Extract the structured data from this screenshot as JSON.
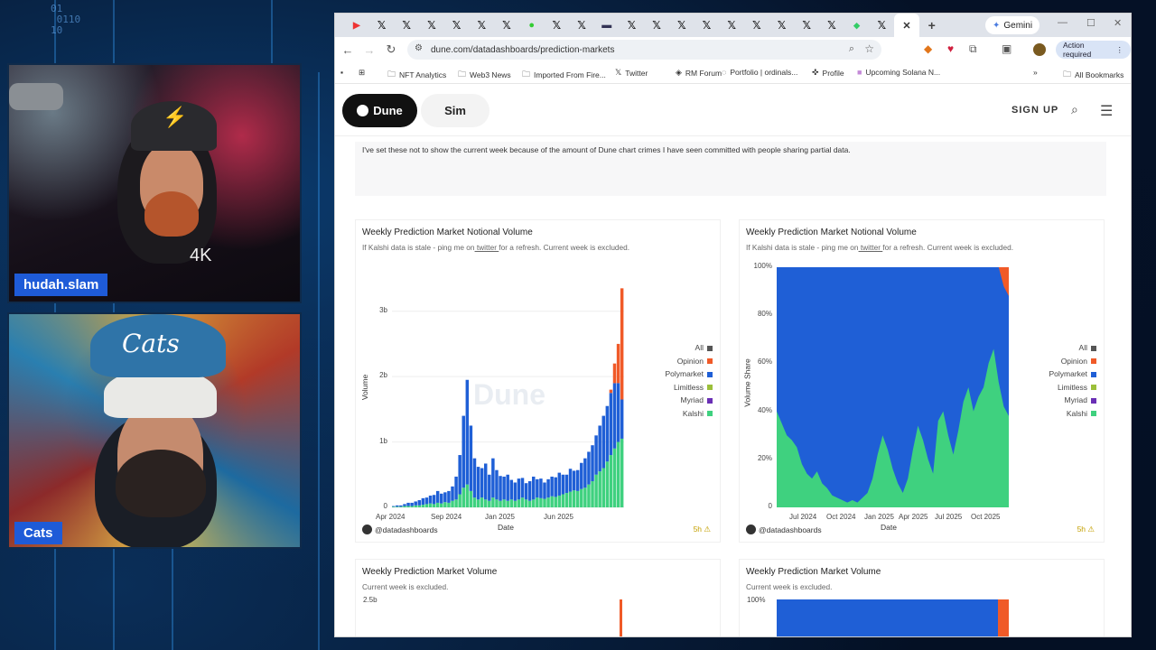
{
  "overlay": {
    "host_label": "hudah.slam",
    "guest_label": "Cats",
    "cap_text": "Cats",
    "digits_text": "01\n 0110\n10"
  },
  "browser": {
    "gemini_tab": "Gemini",
    "url": "dune.com/datadashboards/prediction-markets",
    "action_required": "Action required",
    "bookmarks": [
      "NFT Analytics",
      "Web3 News",
      "Imported From Fire...",
      "Twitter",
      "RM Forum",
      "Portfolio | ordinals...",
      "Profile",
      "Upcoming Solana N...",
      "All Bookmarks"
    ]
  },
  "dune": {
    "logo": "Dune",
    "sim": "Sim",
    "signup": "SIGN UP",
    "note": "I've set these not to show the current week because of the amount of Dune chart crimes I have seen committed with people sharing partial data.",
    "watermark": "Dune"
  },
  "chart_data": [
    {
      "type": "bar",
      "title": "Weekly Prediction Market Notional Volume",
      "subtitle_pre": "If Kalshi data is stale - ping me on",
      "subtitle_link": "twitter",
      "subtitle_post": "for a refresh. Current week is excluded.",
      "xlabel": "Date",
      "ylabel": "Volume",
      "yticks": [
        "0",
        "1b",
        "2b",
        "3b"
      ],
      "xticks": [
        "Apr 2024",
        "Sep 2024",
        "Jan 2025",
        "Jun 2025"
      ],
      "ylim": [
        0,
        3.7
      ],
      "stacked": true,
      "legend": [
        "All",
        "Opinion",
        "Polymarket",
        "Limitless",
        "Myriad",
        "Kalshi"
      ],
      "colors": {
        "All": "#555555",
        "Opinion": "#f05a28",
        "Polymarket": "#1f5fd6",
        "Limitless": "#9bbf3a",
        "Myriad": "#6a2fb5",
        "Kalshi": "#3fd17f"
      },
      "series": [
        {
          "name": "Kalshi",
          "values": [
            0.01,
            0.01,
            0.01,
            0.02,
            0.02,
            0.02,
            0.03,
            0.03,
            0.04,
            0.05,
            0.06,
            0.05,
            0.07,
            0.06,
            0.08,
            0.07,
            0.1,
            0.12,
            0.2,
            0.3,
            0.35,
            0.25,
            0.15,
            0.12,
            0.15,
            0.12,
            0.1,
            0.15,
            0.12,
            0.1,
            0.12,
            0.1,
            0.12,
            0.1,
            0.12,
            0.15,
            0.12,
            0.1,
            0.12,
            0.15,
            0.14,
            0.13,
            0.15,
            0.17,
            0.16,
            0.18,
            0.2,
            0.22,
            0.24,
            0.26,
            0.25,
            0.28,
            0.3,
            0.35,
            0.4,
            0.5,
            0.55,
            0.6,
            0.7,
            0.8,
            0.9,
            1.0,
            1.05
          ]
        },
        {
          "name": "Polymarket",
          "values": [
            0.01,
            0.02,
            0.02,
            0.03,
            0.05,
            0.05,
            0.06,
            0.08,
            0.1,
            0.1,
            0.12,
            0.14,
            0.18,
            0.15,
            0.15,
            0.18,
            0.22,
            0.35,
            0.6,
            1.1,
            1.6,
            1.0,
            0.6,
            0.5,
            0.45,
            0.55,
            0.4,
            0.6,
            0.45,
            0.38,
            0.35,
            0.4,
            0.3,
            0.28,
            0.32,
            0.3,
            0.25,
            0.3,
            0.35,
            0.28,
            0.3,
            0.25,
            0.28,
            0.3,
            0.3,
            0.35,
            0.3,
            0.28,
            0.35,
            0.3,
            0.32,
            0.4,
            0.45,
            0.5,
            0.55,
            0.6,
            0.7,
            0.8,
            0.85,
            0.95,
            1.0,
            0.9,
            0.6
          ]
        },
        {
          "name": "Opinion",
          "values": [
            0,
            0,
            0,
            0,
            0,
            0,
            0,
            0,
            0,
            0,
            0,
            0,
            0,
            0,
            0,
            0,
            0,
            0,
            0,
            0,
            0,
            0,
            0,
            0,
            0,
            0,
            0,
            0,
            0,
            0,
            0,
            0,
            0,
            0,
            0,
            0,
            0,
            0,
            0,
            0,
            0,
            0,
            0,
            0,
            0,
            0,
            0,
            0,
            0,
            0,
            0,
            0,
            0,
            0,
            0,
            0,
            0,
            0,
            0,
            0.05,
            0.3,
            0.6,
            1.7
          ]
        }
      ]
    },
    {
      "type": "area",
      "title": "Weekly Prediction Market Notional Volume",
      "subtitle_pre": "If Kalshi data is stale - ping me on",
      "subtitle_link": "twitter",
      "subtitle_post": "for a refresh. Current week is excluded.",
      "xlabel": "Date",
      "ylabel": "Volume Share",
      "yticks": [
        "0",
        "20%",
        "40%",
        "60%",
        "80%",
        "100%"
      ],
      "xticks": [
        "Jul 2024",
        "Oct 2024",
        "Jan 2025",
        "Apr 2025",
        "Jul 2025",
        "Oct 2025"
      ],
      "ylim": [
        0,
        100
      ],
      "stacked": true,
      "legend": [
        "All",
        "Opinion",
        "Polymarket",
        "Limitless",
        "Myriad",
        "Kalshi"
      ],
      "colors": {
        "All": "#555555",
        "Opinion": "#f05a28",
        "Polymarket": "#1f5fd6",
        "Limitless": "#9bbf3a",
        "Myriad": "#6a2fb5",
        "Kalshi": "#3fd17f"
      },
      "series": [
        {
          "name": "Kalshi",
          "values": [
            40,
            35,
            30,
            28,
            25,
            18,
            14,
            12,
            15,
            10,
            8,
            5,
            4,
            3,
            2,
            3,
            2,
            4,
            6,
            12,
            22,
            30,
            24,
            16,
            10,
            6,
            12,
            24,
            34,
            28,
            20,
            14,
            36,
            40,
            30,
            22,
            32,
            44,
            50,
            40,
            46,
            50,
            60,
            66,
            52,
            42,
            38
          ]
        },
        {
          "name": "Opinion",
          "values": [
            0,
            0,
            0,
            0,
            0,
            0,
            0,
            0,
            0,
            0,
            0,
            0,
            0,
            0,
            0,
            0,
            0,
            0,
            0,
            0,
            0,
            0,
            0,
            0,
            0,
            0,
            0,
            0,
            0,
            0,
            0,
            0,
            0,
            0,
            0,
            0,
            0,
            0,
            0,
            0,
            0,
            0,
            0,
            0,
            0,
            8,
            12
          ]
        }
      ]
    },
    {
      "type": "bar",
      "title": "Weekly Prediction Market Volume",
      "subtitle_pre": "Current week is excluded.",
      "subtitle_link": "",
      "subtitle_post": "",
      "yticks": [
        "2.5b"
      ],
      "stacked": true
    },
    {
      "type": "area",
      "title": "Weekly Prediction Market Volume",
      "subtitle_pre": "Current week is excluded.",
      "subtitle_link": "",
      "subtitle_post": "",
      "yticks": [
        "100%"
      ],
      "stacked": true
    }
  ],
  "cards_footer": {
    "author": "@datadashboards",
    "age": "5h ⚠"
  }
}
